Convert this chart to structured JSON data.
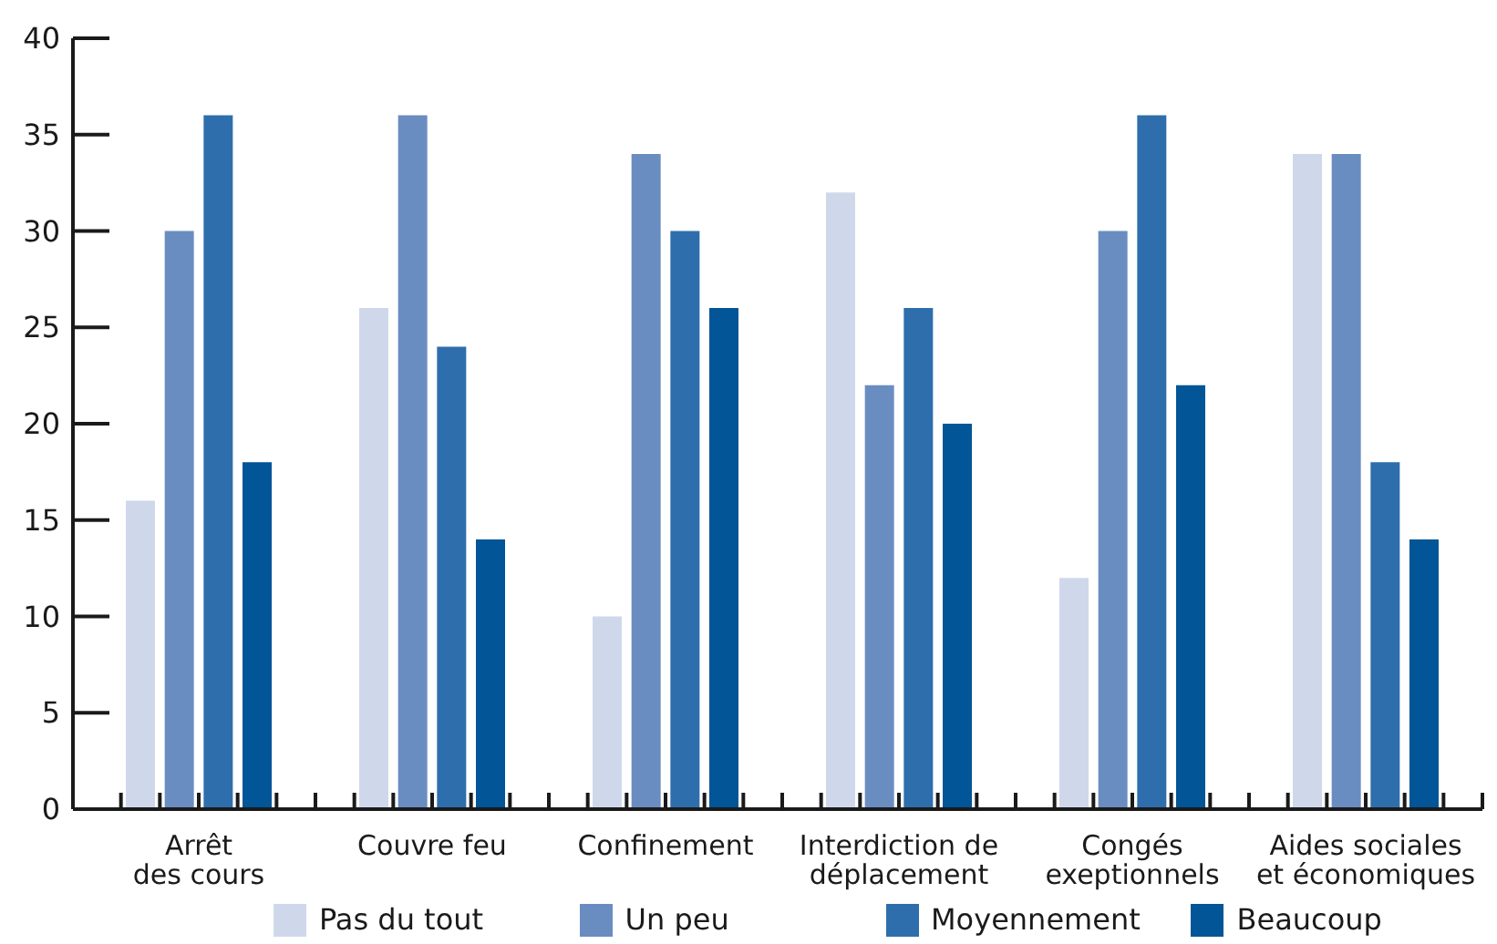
{
  "chart_data": {
    "type": "bar",
    "categories": [
      "Arrêt\ndes cours",
      "Couvre feu",
      "Confinement",
      "Interdiction de\ndéplacement",
      "Congés\nexeptionnels",
      "Aides sociales\net économiques"
    ],
    "series": [
      {
        "name": "Pas du tout",
        "color": "#cfd8eb",
        "values": [
          16,
          26,
          10,
          32,
          12,
          34
        ]
      },
      {
        "name": "Un peu",
        "color": "#6a8dc1",
        "values": [
          30,
          36,
          34,
          22,
          30,
          34
        ]
      },
      {
        "name": "Moyennement",
        "color": "#2e6eac",
        "values": [
          36,
          24,
          30,
          26,
          36,
          18
        ]
      },
      {
        "name": "Beaucoup",
        "color": "#025596",
        "values": [
          18,
          14,
          26,
          20,
          22,
          14
        ]
      }
    ],
    "ylim": [
      0,
      40
    ],
    "yticks": [
      0,
      5,
      10,
      15,
      20,
      25,
      30,
      35,
      40
    ],
    "grid": false,
    "legend": "bottom"
  }
}
